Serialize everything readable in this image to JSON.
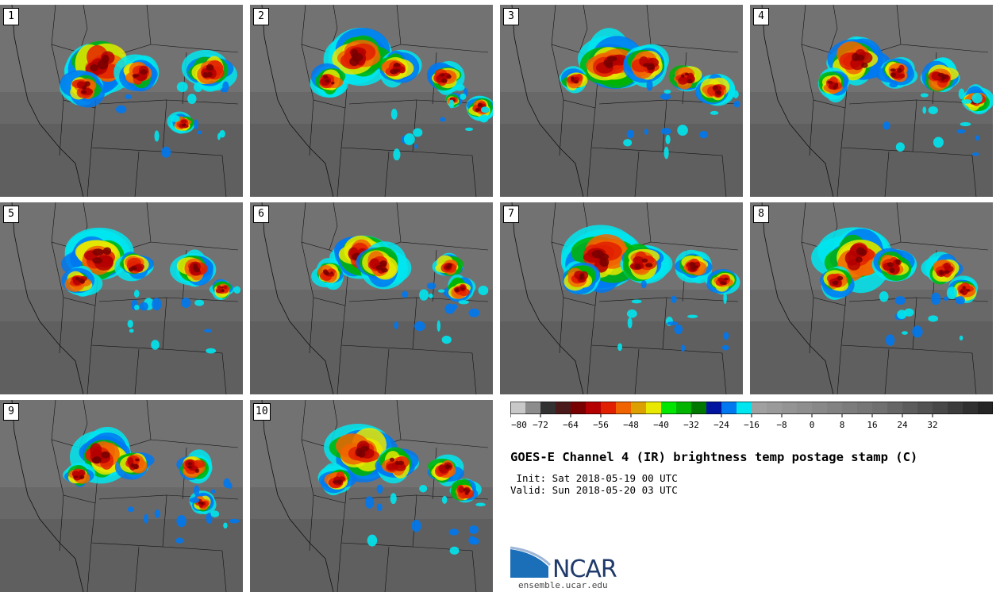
{
  "title": "GOES-E Channel 4 (IR) brightness temp postage stamp (C)",
  "init": " Init: Sat 2018-05-19 00 UTC",
  "valid": "Valid: Sun 2018-05-20 03 UTC",
  "logo": {
    "text": "NCAR",
    "site": "ensemble.ucar.edu"
  },
  "panels": [
    "1",
    "2",
    "3",
    "4",
    "5",
    "6",
    "7",
    "8",
    "9",
    "10"
  ],
  "colorbar": {
    "ticks": [
      "−80",
      "−72",
      "−64",
      "−56",
      "−48",
      "−40",
      "−32",
      "−24",
      "−16",
      "−8",
      "0",
      "8",
      "16",
      "24",
      "32"
    ],
    "colors": [
      "#c8c8c8",
      "#8c8c8c",
      "#323232",
      "#4a1a1a",
      "#780000",
      "#b40000",
      "#e02000",
      "#f06400",
      "#dca000",
      "#e8e800",
      "#00e600",
      "#00b400",
      "#007800",
      "#0014a0",
      "#0078f0",
      "#00e6f0",
      "#a0a0a0",
      "#9a9a9a",
      "#949494",
      "#8e8e8e",
      "#888888",
      "#828282",
      "#7c7c7c",
      "#767676",
      "#707070",
      "#666666",
      "#5c5c5c",
      "#525252",
      "#484848",
      "#3c3c3c",
      "#303030",
      "#242424"
    ]
  }
}
